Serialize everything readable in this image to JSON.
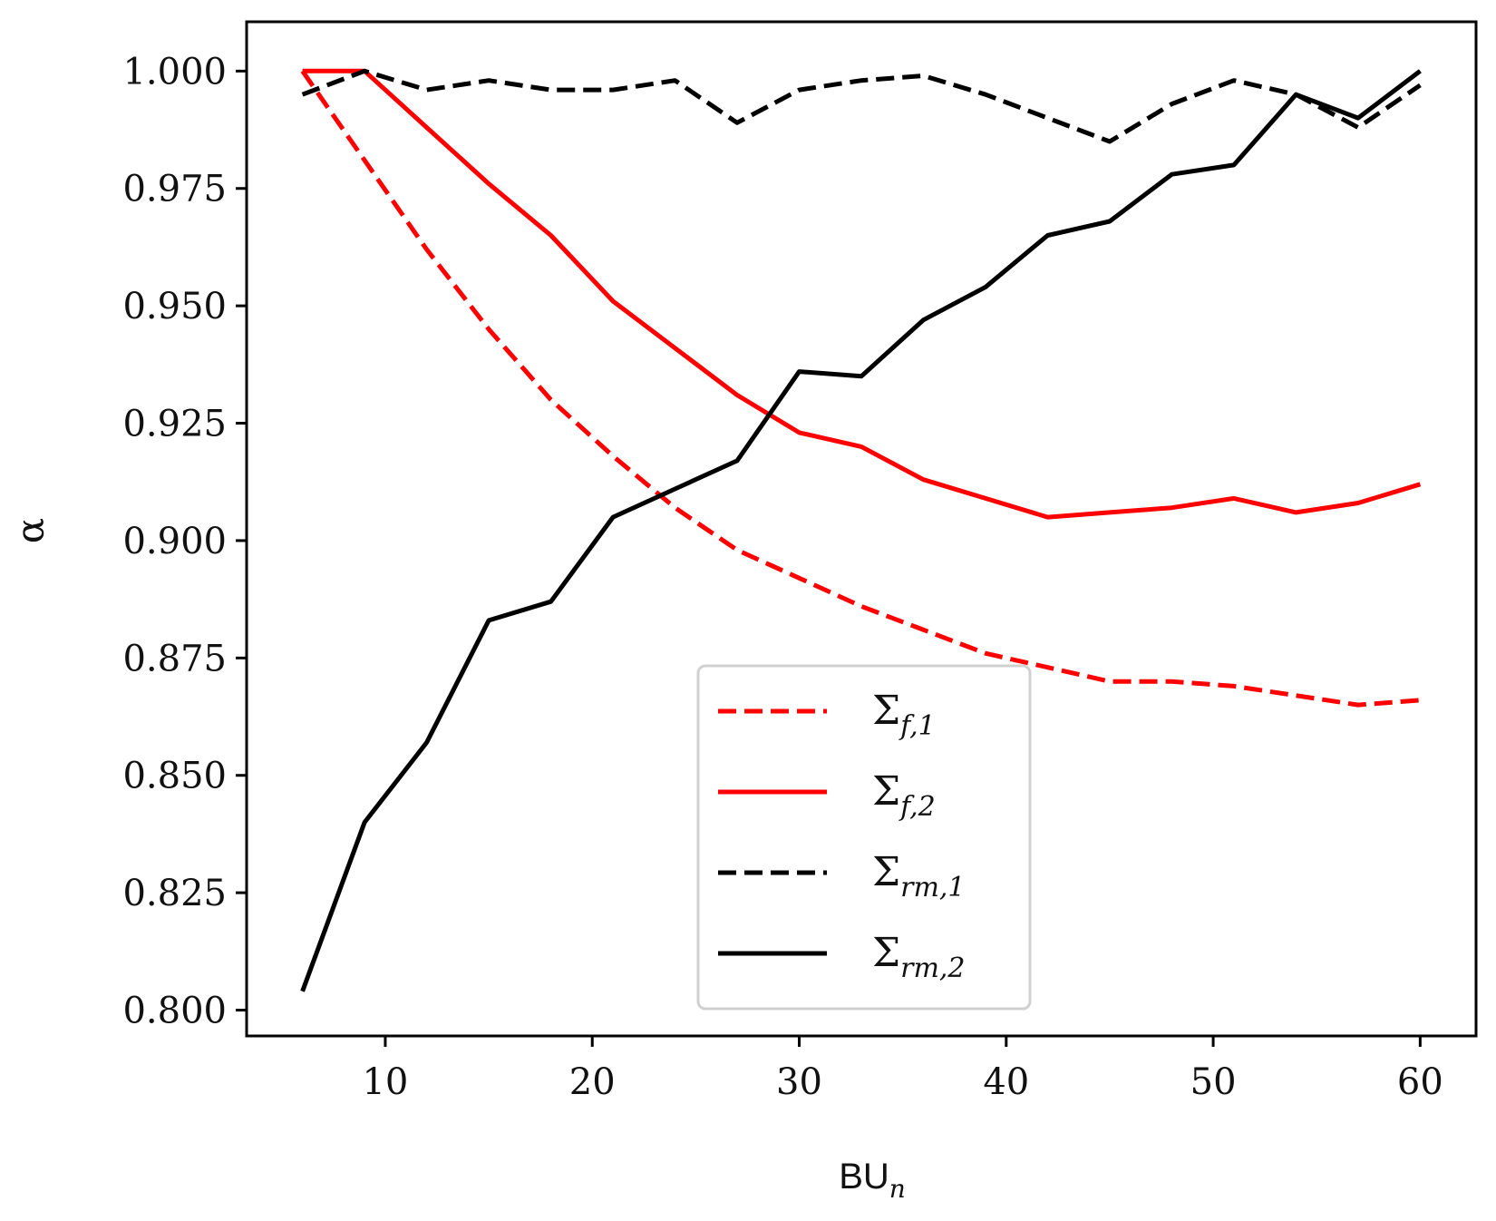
{
  "chart_data": {
    "type": "line",
    "title": "",
    "xlabel": "BU",
    "xlabel_subscript": "n",
    "ylabel": "α",
    "xlim": [
      3.3,
      62.7
    ],
    "ylim": [
      0.7945,
      1.0105
    ],
    "xticks": [
      10,
      20,
      30,
      40,
      50,
      60
    ],
    "xtick_labels": [
      "10",
      "20",
      "30",
      "40",
      "50",
      "60"
    ],
    "yticks": [
      0.8,
      0.825,
      0.85,
      0.875,
      0.9,
      0.925,
      0.95,
      0.975,
      1.0
    ],
    "ytick_labels": [
      "0.800",
      "0.825",
      "0.850",
      "0.875",
      "0.900",
      "0.925",
      "0.950",
      "0.975",
      "1.000"
    ],
    "grid": false,
    "legend_position": "lower-center",
    "x": [
      6,
      9,
      12,
      15,
      18,
      21,
      24,
      27,
      30,
      33,
      36,
      39,
      42,
      45,
      48,
      51,
      54,
      57,
      60
    ],
    "series": [
      {
        "name": "Σ",
        "sub": "f,1",
        "color": "#ff0000",
        "dash": "dashed",
        "values": [
          1.0,
          0.981,
          0.962,
          0.945,
          0.93,
          0.918,
          0.907,
          0.898,
          0.892,
          0.886,
          0.881,
          0.876,
          0.873,
          0.87,
          0.87,
          0.869,
          0.867,
          0.865,
          0.866
        ]
      },
      {
        "name": "Σ",
        "sub": "f,2",
        "color": "#ff0000",
        "dash": "solid",
        "values": [
          1.0,
          1.0,
          0.988,
          0.976,
          0.965,
          0.951,
          0.941,
          0.931,
          0.923,
          0.92,
          0.913,
          0.909,
          0.905,
          0.906,
          0.907,
          0.909,
          0.906,
          0.908,
          0.912
        ]
      },
      {
        "name": "Σ",
        "sub": "rm,1",
        "color": "#000000",
        "dash": "dashed",
        "values": [
          0.995,
          1.0,
          0.996,
          0.998,
          0.996,
          0.996,
          0.998,
          0.989,
          0.996,
          0.998,
          0.999,
          0.995,
          0.99,
          0.985,
          0.993,
          0.998,
          0.995,
          0.988,
          0.997
        ]
      },
      {
        "name": "Σ",
        "sub": "rm,2",
        "color": "#000000",
        "dash": "solid",
        "values": [
          0.804,
          0.84,
          0.857,
          0.883,
          0.887,
          0.905,
          0.911,
          0.917,
          0.936,
          0.935,
          0.947,
          0.954,
          0.965,
          0.968,
          0.978,
          0.98,
          0.995,
          0.99,
          1.0
        ]
      }
    ]
  }
}
